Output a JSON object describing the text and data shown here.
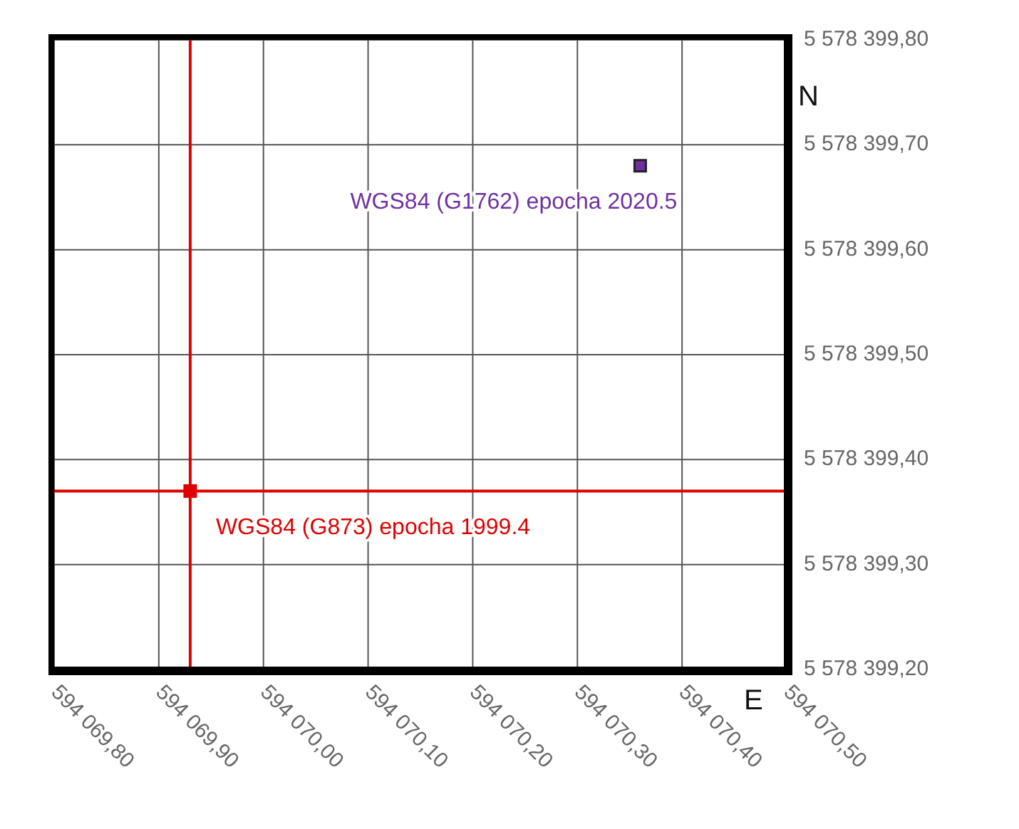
{
  "chart_data": {
    "type": "scatter",
    "xlabel": "E",
    "ylabel": "N",
    "xlim": [
      594069.8,
      594070.5
    ],
    "xticks": [
      {
        "value": 594069.8,
        "label": "594 069,80"
      },
      {
        "value": 594069.9,
        "label": "594 069,90"
      },
      {
        "value": 594070.0,
        "label": "594 070,00"
      },
      {
        "value": 594070.1,
        "label": "594 070,10"
      },
      {
        "value": 594070.2,
        "label": "594 070,20"
      },
      {
        "value": 594070.3,
        "label": "594 070,30"
      },
      {
        "value": 594070.4,
        "label": "594 070,40"
      },
      {
        "value": 594070.5,
        "label": "594 070,50"
      }
    ],
    "ylim": [
      5578399.2,
      5578399.8
    ],
    "yticks": [
      {
        "value": 5578399.2,
        "label": "5 578 399,20"
      },
      {
        "value": 5578399.3,
        "label": "5 578 399,30"
      },
      {
        "value": 5578399.4,
        "label": "5 578 399,40"
      },
      {
        "value": 5578399.5,
        "label": "5 578 399,50"
      },
      {
        "value": 5578399.6,
        "label": "5 578 399,60"
      },
      {
        "value": 5578399.7,
        "label": "5 578 399,70"
      },
      {
        "value": 5578399.8,
        "label": "5 578 399,80"
      }
    ],
    "series": [
      {
        "name": "WGS84 (G873) epocha 1999.4",
        "color": "#e00000",
        "x": [
          594069.93
        ],
        "values": [
          5578399.37
        ]
      },
      {
        "name": "WGS84 (G1762) epocha 2020.5",
        "color": "#7030a0",
        "x": [
          594070.36
        ],
        "values": [
          5578399.68
        ]
      }
    ],
    "ref_lines": [
      {
        "axis": "x",
        "value": 594069.93,
        "color": "#e00000"
      },
      {
        "axis": "y",
        "value": 5578399.37,
        "color": "#e00000"
      }
    ],
    "marker": "square",
    "grid": true,
    "legend": false
  }
}
